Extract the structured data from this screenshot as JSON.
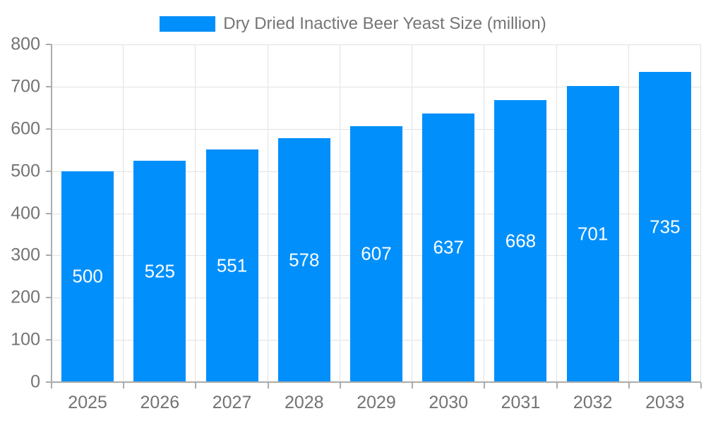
{
  "chart_data": {
    "type": "bar",
    "title": "Dry Dried Inactive Beer Yeast Size (million)",
    "categories": [
      "2025",
      "2026",
      "2027",
      "2028",
      "2029",
      "2030",
      "2031",
      "2032",
      "2033"
    ],
    "values": [
      500,
      525,
      551,
      578,
      607,
      637,
      668,
      701,
      735
    ],
    "series": [
      {
        "name": "Dry Dried Inactive Beer Yeast Size (million)",
        "values": [
          500,
          525,
          551,
          578,
          607,
          637,
          668,
          701,
          735
        ]
      }
    ],
    "xlabel": "",
    "ylabel": "",
    "ylim": [
      0,
      800
    ],
    "ytick_step": 100,
    "yticks": [
      0,
      100,
      200,
      300,
      400,
      500,
      600,
      700,
      800
    ],
    "grid": "on",
    "legend_position": "top",
    "value_labels": "inside-center"
  },
  "legend": {
    "label": "Dry Dried Inactive Beer Yeast Size (million)"
  },
  "colors": {
    "bar": "#008FFB",
    "grid": "#e2e2e2",
    "axis": "#ababab",
    "tick_text": "#737373",
    "value_label": "#ffffff",
    "legend_text": "#757575"
  }
}
